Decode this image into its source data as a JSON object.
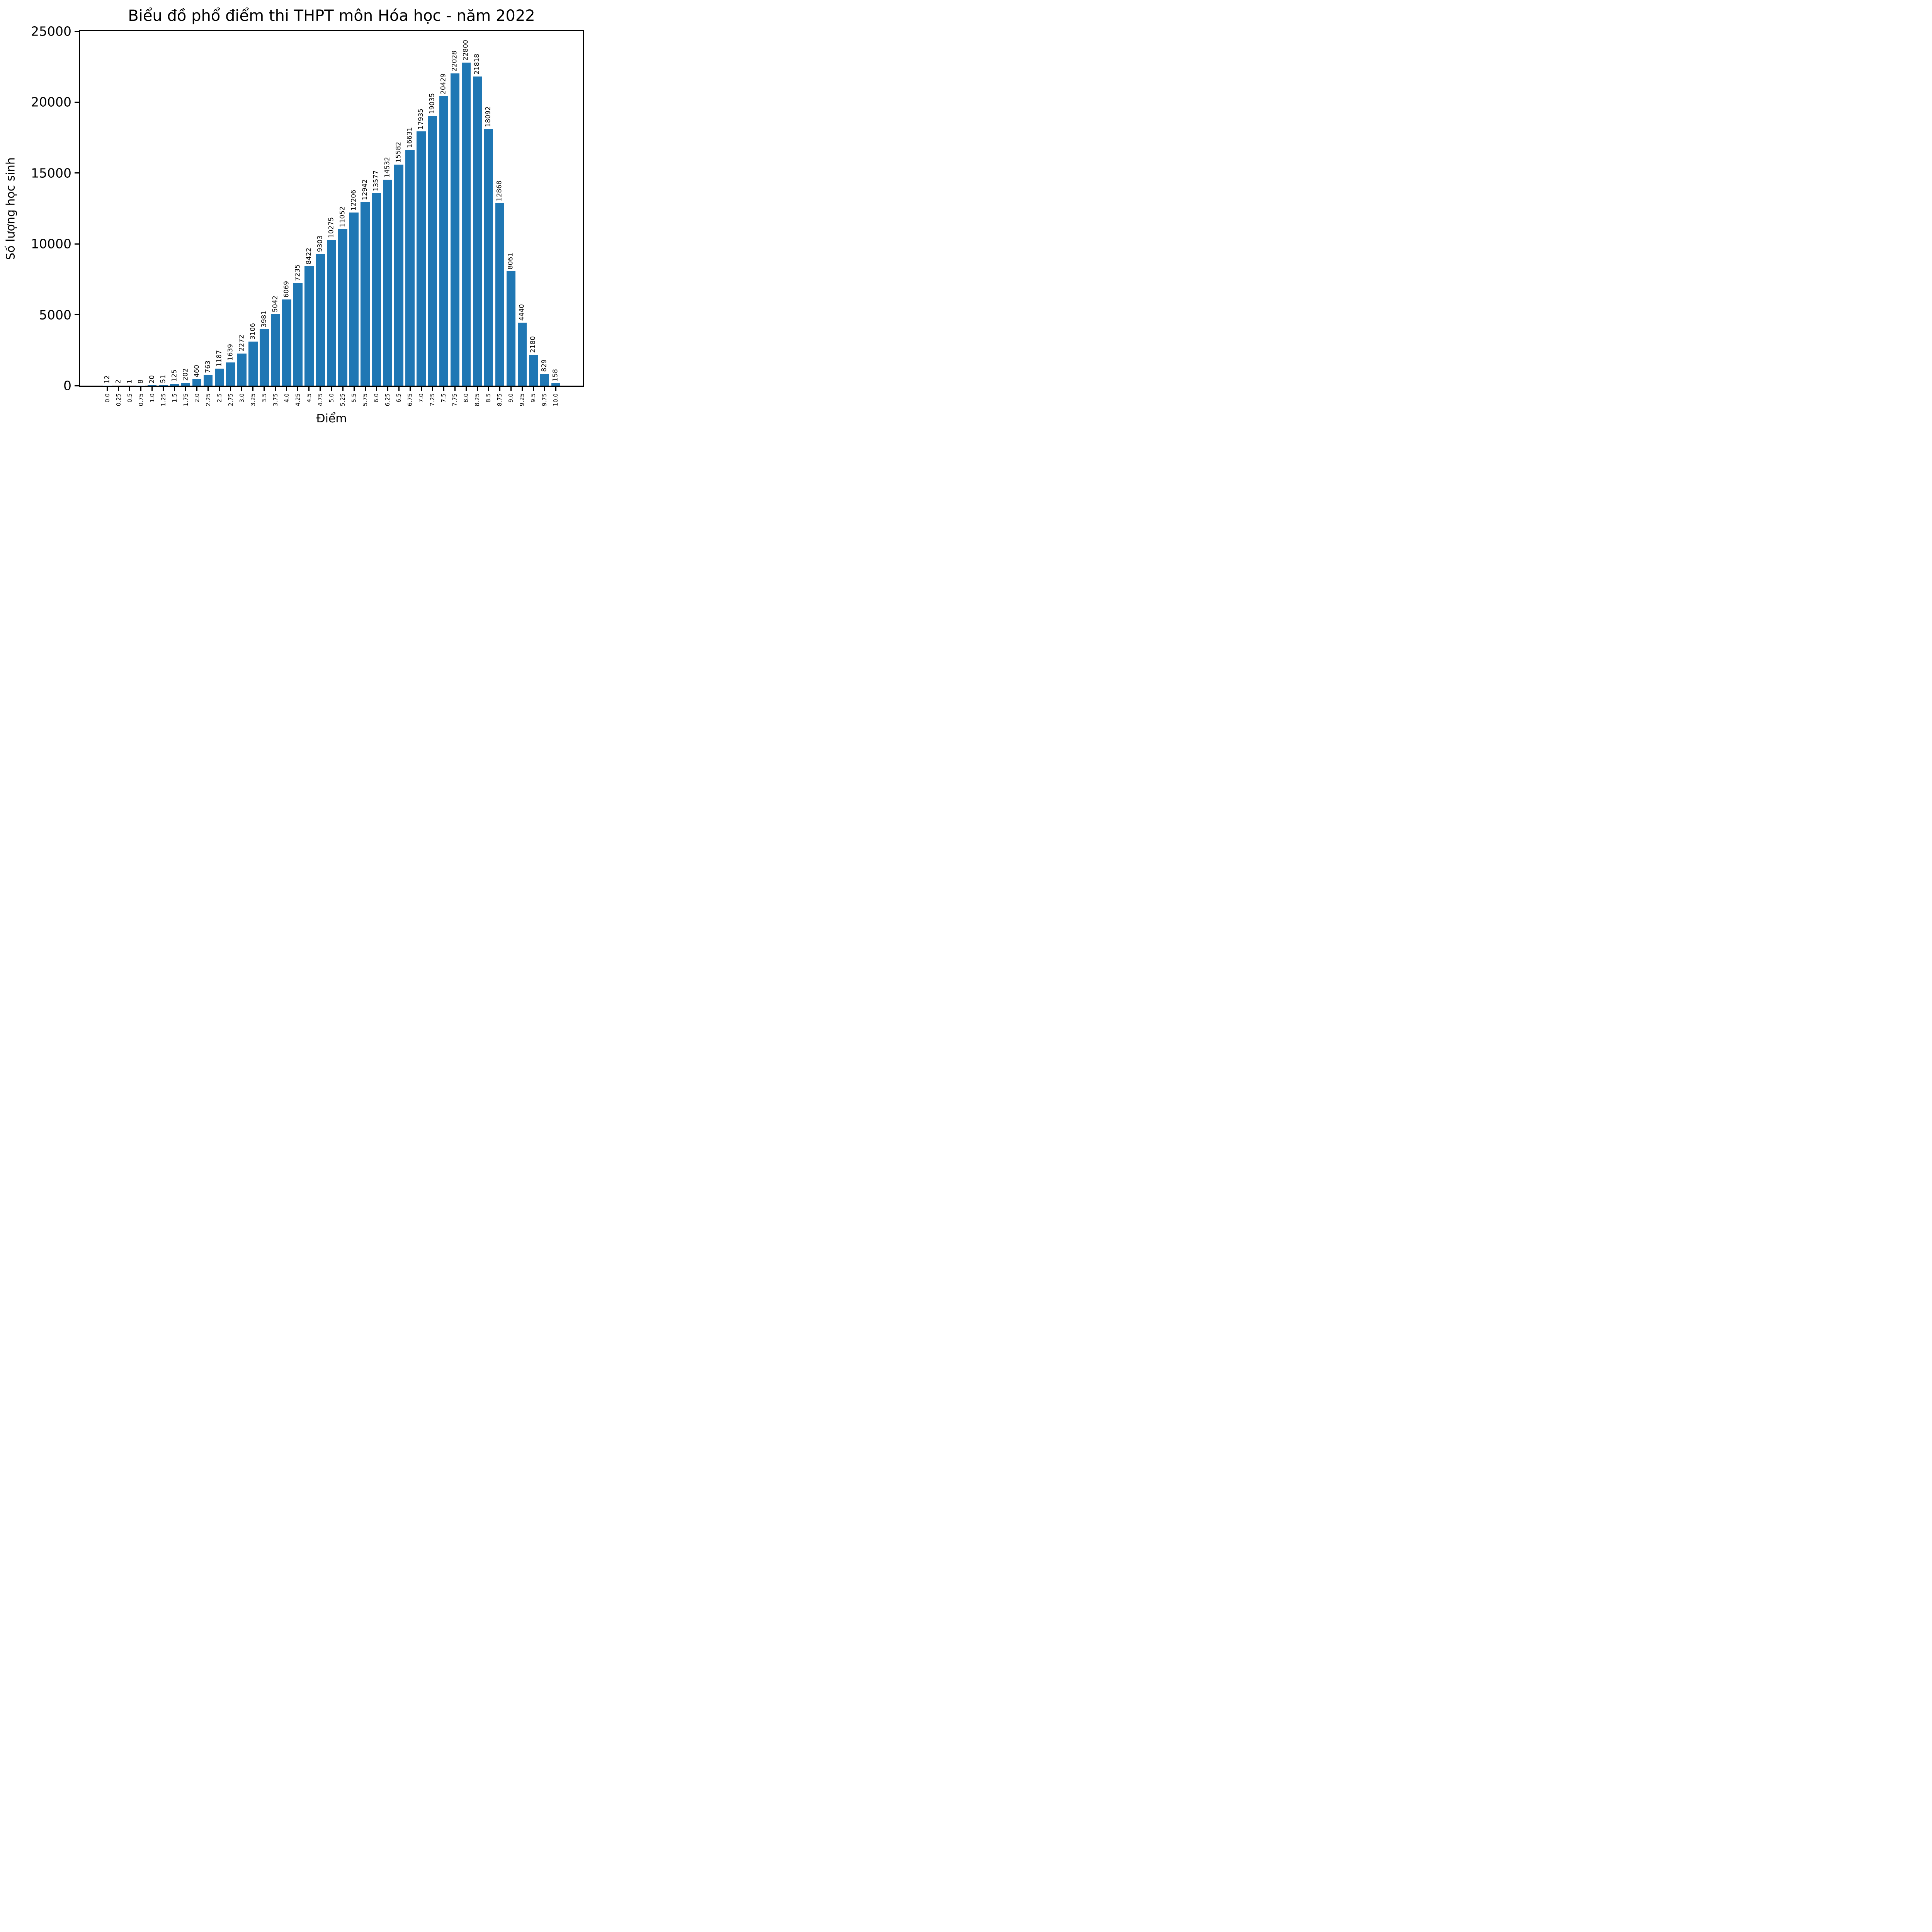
{
  "figure": {
    "background": "#ffffff",
    "text_color": "#000000",
    "spine_color": "#000000"
  },
  "chart_data": {
    "type": "bar",
    "title": "Biểu đồ phổ điểm thi THPT môn Hóa học - năm 2022",
    "xlabel": "Điểm",
    "ylabel": "Số lượng học sinh",
    "bar_color": "#1f77b4",
    "ylim": [
      0,
      25000
    ],
    "yticks": [
      0,
      5000,
      10000,
      15000,
      20000,
      25000
    ],
    "grid": false,
    "legend": "none",
    "categories": [
      "0.0",
      "0.25",
      "0.5",
      "0.75",
      "1.0",
      "1.25",
      "1.5",
      "1.75",
      "2.0",
      "2.25",
      "2.5",
      "2.75",
      "3.0",
      "3.25",
      "3.5",
      "3.75",
      "4.0",
      "4.25",
      "4.5",
      "4.75",
      "5.0",
      "5.25",
      "5.5",
      "5.75",
      "6.0",
      "6.25",
      "6.5",
      "6.75",
      "7.0",
      "7.25",
      "7.5",
      "7.75",
      "8.0",
      "8.25",
      "8.5",
      "8.75",
      "9.0",
      "9.25",
      "9.5",
      "9.75",
      "10.0"
    ],
    "values": [
      12,
      2,
      1,
      8,
      20,
      51,
      125,
      202,
      460,
      763,
      1187,
      1639,
      2272,
      3106,
      3981,
      5042,
      6069,
      7235,
      8422,
      9303,
      10275,
      11052,
      12206,
      12942,
      13577,
      14532,
      15582,
      16631,
      17935,
      19035,
      20429,
      22028,
      22800,
      21818,
      18092,
      12868,
      8061,
      4440,
      2180,
      829,
      158
    ]
  }
}
